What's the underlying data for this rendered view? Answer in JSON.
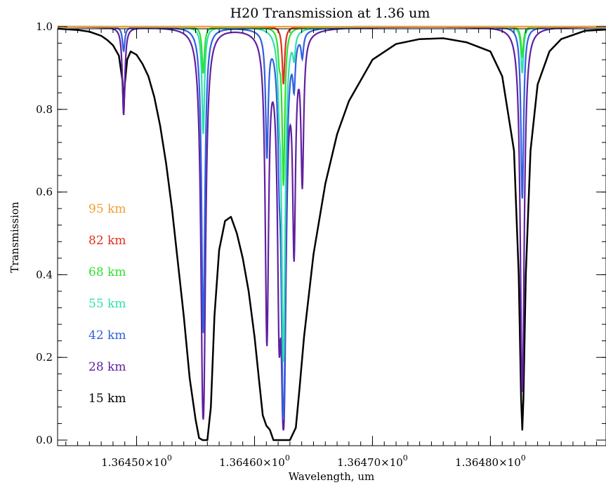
{
  "chart_data": {
    "type": "line",
    "title": "H20 Transmission at 1.36 um",
    "xlabel": "Wavelength, um",
    "ylabel": "Transmission",
    "xlim": [
      1.364433,
      1.364898
    ],
    "ylim": [
      0.0,
      1.0
    ],
    "grid": false,
    "legend_position": "left",
    "x_ticks": [
      {
        "value": 1.3645,
        "label_base": "1.36450×10",
        "label_exp": "0"
      },
      {
        "value": 1.3646,
        "label_base": "1.36460×10",
        "label_exp": "0"
      },
      {
        "value": 1.3647,
        "label_base": "1.36470×10",
        "label_exp": "0"
      },
      {
        "value": 1.3648,
        "label_base": "1.36480×10",
        "label_exp": "0"
      }
    ],
    "y_ticks": [
      {
        "value": 0.0,
        "label": "0.0"
      },
      {
        "value": 0.2,
        "label": "0.2"
      },
      {
        "value": 0.4,
        "label": "0.4"
      },
      {
        "value": 0.6,
        "label": "0.6"
      },
      {
        "value": 0.8,
        "label": "0.8"
      },
      {
        "value": 1.0,
        "label": "1.0"
      }
    ],
    "lines": [
      {
        "center": 1.364489,
        "width": 1.2e-06
      },
      {
        "center": 1.3645565,
        "width": 1.2e-06
      },
      {
        "center": 1.3646105,
        "width": 1.2e-06
      },
      {
        "center": 1.364621,
        "width": 1.2e-06
      },
      {
        "center": 1.3646245,
        "width": 1.2e-06
      },
      {
        "center": 1.3646335,
        "width": 1.2e-06
      },
      {
        "center": 1.3646405,
        "width": 1.2e-06
      },
      {
        "center": 1.364827,
        "width": 1.2e-06
      }
    ],
    "series": [
      {
        "name": "95 km",
        "color": "#f0a030",
        "depths": [
          0.0,
          0.0,
          0.0,
          0.0,
          0.0,
          0.0,
          0.0,
          0.0
        ]
      },
      {
        "name": "82 km",
        "color": "#e03020",
        "depths": [
          0.0,
          0.0,
          0.0,
          0.0,
          0.05,
          0.0,
          0.0,
          0.0
        ]
      },
      {
        "name": "68 km",
        "color": "#30e030",
        "depths": [
          0.0,
          0.04,
          0.0,
          0.02,
          0.16,
          0.0,
          0.0,
          0.025
        ]
      },
      {
        "name": "55 km",
        "color": "#30e0b0",
        "depths": [
          0.0,
          0.1,
          0.0,
          0.04,
          0.55,
          0.02,
          0.0,
          0.04
        ]
      },
      {
        "name": "42 km",
        "color": "#3060e0",
        "depths": [
          0.02,
          0.45,
          0.12,
          0.08,
          1.0,
          0.04,
          0.02,
          0.18
        ]
      },
      {
        "name": "28 km",
        "color": "#6020a0",
        "depths": [
          0.08,
          1.0,
          0.48,
          0.4,
          1.2,
          0.25,
          0.15,
          0.72
        ]
      }
    ],
    "reference_series": {
      "name": "15 km",
      "color": "#000000",
      "points": [
        [
          1.364433,
          0.995
        ],
        [
          1.36445,
          0.992
        ],
        [
          1.36446,
          0.988
        ],
        [
          1.36447,
          0.978
        ],
        [
          1.364475,
          0.968
        ],
        [
          1.36448,
          0.955
        ],
        [
          1.364485,
          0.93
        ],
        [
          1.364488,
          0.87
        ],
        [
          1.364489,
          0.798
        ],
        [
          1.36449,
          0.86
        ],
        [
          1.364492,
          0.92
        ],
        [
          1.364495,
          0.94
        ],
        [
          1.3645,
          0.932
        ],
        [
          1.364505,
          0.91
        ],
        [
          1.36451,
          0.88
        ],
        [
          1.364515,
          0.83
        ],
        [
          1.36452,
          0.76
        ],
        [
          1.364525,
          0.67
        ],
        [
          1.36453,
          0.56
        ],
        [
          1.364535,
          0.43
        ],
        [
          1.36454,
          0.3
        ],
        [
          1.364545,
          0.15
        ],
        [
          1.36455,
          0.05
        ],
        [
          1.364553,
          0.005
        ],
        [
          1.364556,
          0.0
        ],
        [
          1.36456,
          0.0
        ],
        [
          1.364563,
          0.08
        ],
        [
          1.364566,
          0.3
        ],
        [
          1.36457,
          0.46
        ],
        [
          1.364575,
          0.53
        ],
        [
          1.36458,
          0.54
        ],
        [
          1.364585,
          0.5
        ],
        [
          1.36459,
          0.44
        ],
        [
          1.364595,
          0.36
        ],
        [
          1.3646,
          0.25
        ],
        [
          1.364604,
          0.14
        ],
        [
          1.364607,
          0.06
        ],
        [
          1.36461,
          0.035
        ],
        [
          1.364613,
          0.025
        ],
        [
          1.364616,
          0.0
        ],
        [
          1.36462,
          0.0
        ],
        [
          1.364625,
          0.0
        ],
        [
          1.36463,
          0.0
        ],
        [
          1.364635,
          0.03
        ],
        [
          1.364638,
          0.12
        ],
        [
          1.364642,
          0.25
        ],
        [
          1.36465,
          0.45
        ],
        [
          1.36466,
          0.62
        ],
        [
          1.36467,
          0.74
        ],
        [
          1.36468,
          0.82
        ],
        [
          1.3647,
          0.92
        ],
        [
          1.36472,
          0.958
        ],
        [
          1.36474,
          0.97
        ],
        [
          1.36476,
          0.972
        ],
        [
          1.36478,
          0.962
        ],
        [
          1.3648,
          0.94
        ],
        [
          1.36481,
          0.88
        ],
        [
          1.36482,
          0.7
        ],
        [
          1.364824,
          0.4
        ],
        [
          1.364826,
          0.1
        ],
        [
          1.364827,
          0.025
        ],
        [
          1.364828,
          0.1
        ],
        [
          1.36483,
          0.4
        ],
        [
          1.364834,
          0.7
        ],
        [
          1.36484,
          0.86
        ],
        [
          1.36485,
          0.94
        ],
        [
          1.36486,
          0.97
        ],
        [
          1.36487,
          0.98
        ],
        [
          1.36488,
          0.99
        ],
        [
          1.364898,
          0.993
        ]
      ]
    }
  }
}
